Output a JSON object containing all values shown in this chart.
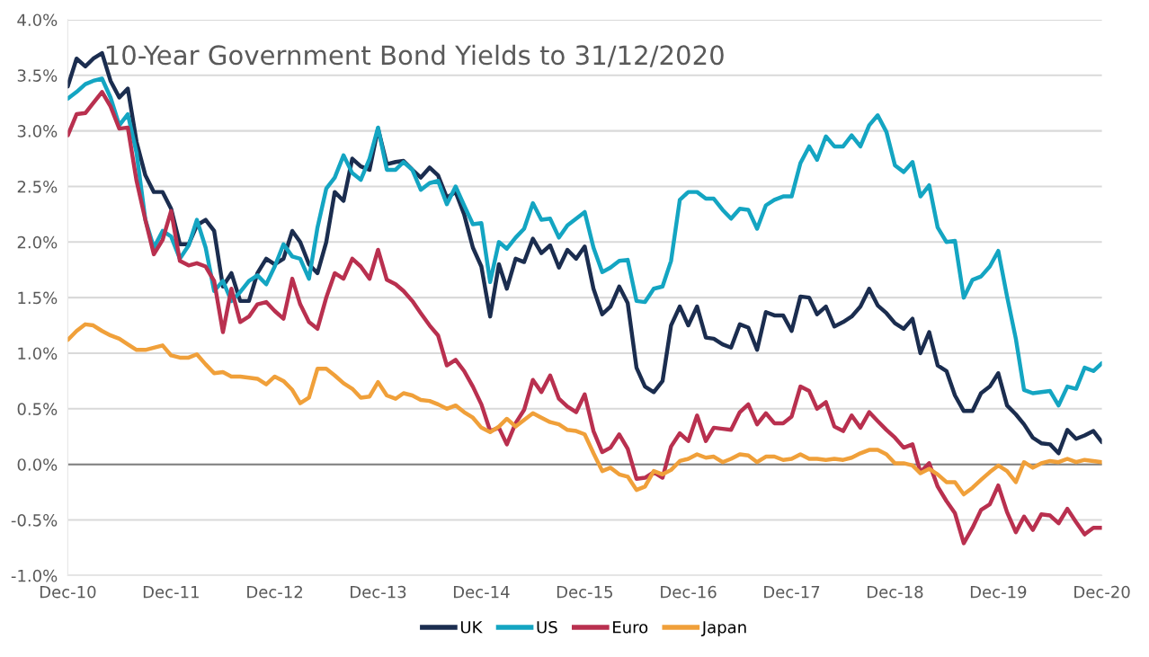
{
  "chart_data": {
    "type": "line",
    "title": "10-Year Government Bond Yields to 31/12/2020",
    "x": [
      "2010-12",
      "2011-01",
      "2011-02",
      "2011-03",
      "2011-04",
      "2011-05",
      "2011-06",
      "2011-07",
      "2011-08",
      "2011-09",
      "2011-10",
      "2011-11",
      "2011-12",
      "2012-01",
      "2012-02",
      "2012-03",
      "2012-04",
      "2012-05",
      "2012-06",
      "2012-07",
      "2012-08",
      "2012-09",
      "2012-10",
      "2012-11",
      "2012-12",
      "2013-01",
      "2013-02",
      "2013-03",
      "2013-04",
      "2013-05",
      "2013-06",
      "2013-07",
      "2013-08",
      "2013-09",
      "2013-10",
      "2013-11",
      "2013-12",
      "2014-01",
      "2014-02",
      "2014-03",
      "2014-04",
      "2014-05",
      "2014-06",
      "2014-07",
      "2014-08",
      "2014-09",
      "2014-10",
      "2014-11",
      "2014-12",
      "2015-01",
      "2015-02",
      "2015-03",
      "2015-04",
      "2015-05",
      "2015-06",
      "2015-07",
      "2015-08",
      "2015-09",
      "2015-10",
      "2015-11",
      "2015-12",
      "2016-01",
      "2016-02",
      "2016-03",
      "2016-04",
      "2016-05",
      "2016-06",
      "2016-07",
      "2016-08",
      "2016-09",
      "2016-10",
      "2016-11",
      "2016-12",
      "2017-01",
      "2017-02",
      "2017-03",
      "2017-04",
      "2017-05",
      "2017-06",
      "2017-07",
      "2017-08",
      "2017-09",
      "2017-10",
      "2017-11",
      "2017-12",
      "2018-01",
      "2018-02",
      "2018-03",
      "2018-04",
      "2018-05",
      "2018-06",
      "2018-07",
      "2018-08",
      "2018-09",
      "2018-10",
      "2018-11",
      "2018-12",
      "2019-01",
      "2019-02",
      "2019-03",
      "2019-04",
      "2019-05",
      "2019-06",
      "2019-07",
      "2019-08",
      "2019-09",
      "2019-10",
      "2019-11",
      "2019-12",
      "2020-01",
      "2020-02",
      "2020-03",
      "2020-04",
      "2020-05",
      "2020-06",
      "2020-07",
      "2020-08",
      "2020-09",
      "2020-10",
      "2020-11",
      "2020-12"
    ],
    "series": [
      {
        "name": "UK",
        "color": "#1b2d4f",
        "values": [
          3.4,
          3.65,
          3.58,
          3.65,
          3.7,
          3.45,
          3.3,
          3.38,
          2.9,
          2.6,
          2.45,
          2.45,
          2.3,
          1.98,
          1.98,
          2.15,
          2.2,
          2.1,
          1.6,
          1.72,
          1.47,
          1.47,
          1.72,
          1.85,
          1.8,
          1.85,
          2.1,
          2.0,
          1.8,
          1.72,
          2.0,
          2.45,
          2.37,
          2.75,
          2.68,
          2.65,
          3.02,
          2.7,
          2.72,
          2.73,
          2.65,
          2.58,
          2.67,
          2.6,
          2.4,
          2.45,
          2.25,
          1.95,
          1.78,
          1.33,
          1.8,
          1.58,
          1.85,
          1.82,
          2.03,
          1.9,
          1.97,
          1.77,
          1.93,
          1.85,
          1.96,
          1.58,
          1.35,
          1.42,
          1.6,
          1.45,
          0.87,
          0.7,
          0.65,
          0.75,
          1.25,
          1.42,
          1.25,
          1.42,
          1.14,
          1.13,
          1.08,
          1.05,
          1.26,
          1.23,
          1.03,
          1.37,
          1.34,
          1.34,
          1.2,
          1.51,
          1.5,
          1.35,
          1.42,
          1.24,
          1.28,
          1.33,
          1.42,
          1.58,
          1.43,
          1.36,
          1.27,
          1.22,
          1.31,
          1.0,
          1.19,
          0.89,
          0.84,
          0.62,
          0.48,
          0.48,
          0.64,
          0.7,
          0.82,
          0.53,
          0.45,
          0.36,
          0.24,
          0.19,
          0.18,
          0.1,
          0.31,
          0.23,
          0.26,
          0.3,
          0.2
        ]
      },
      {
        "name": "US",
        "color": "#14a5c2",
        "values": [
          3.29,
          3.35,
          3.42,
          3.45,
          3.47,
          3.3,
          3.05,
          3.15,
          2.8,
          2.2,
          1.95,
          2.1,
          2.05,
          1.85,
          1.97,
          2.2,
          1.95,
          1.56,
          1.65,
          1.47,
          1.55,
          1.65,
          1.7,
          1.62,
          1.78,
          1.98,
          1.87,
          1.85,
          1.67,
          2.13,
          2.48,
          2.58,
          2.78,
          2.62,
          2.56,
          2.75,
          3.03,
          2.65,
          2.65,
          2.72,
          2.65,
          2.47,
          2.53,
          2.55,
          2.34,
          2.5,
          2.33,
          2.16,
          2.17,
          1.64,
          2.0,
          1.94,
          2.04,
          2.12,
          2.35,
          2.2,
          2.21,
          2.04,
          2.15,
          2.21,
          2.27,
          1.95,
          1.73,
          1.77,
          1.83,
          1.84,
          1.47,
          1.46,
          1.58,
          1.6,
          1.83,
          2.38,
          2.45,
          2.45,
          2.39,
          2.39,
          2.29,
          2.21,
          2.3,
          2.29,
          2.12,
          2.33,
          2.38,
          2.41,
          2.41,
          2.71,
          2.86,
          2.74,
          2.95,
          2.86,
          2.86,
          2.96,
          2.86,
          3.05,
          3.14,
          2.99,
          2.69,
          2.63,
          2.72,
          2.41,
          2.51,
          2.13,
          2.0,
          2.01,
          1.5,
          1.66,
          1.69,
          1.78,
          1.92,
          1.51,
          1.13,
          0.67,
          0.64,
          0.65,
          0.66,
          0.53,
          0.7,
          0.68,
          0.87,
          0.84,
          0.91
        ]
      },
      {
        "name": "Euro",
        "color": "#b9304f",
        "values": [
          2.96,
          3.15,
          3.16,
          3.25,
          3.35,
          3.22,
          3.02,
          3.03,
          2.55,
          2.2,
          1.89,
          2.02,
          2.28,
          1.83,
          1.79,
          1.81,
          1.78,
          1.65,
          1.19,
          1.58,
          1.28,
          1.33,
          1.44,
          1.46,
          1.38,
          1.31,
          1.67,
          1.44,
          1.28,
          1.22,
          1.5,
          1.72,
          1.67,
          1.85,
          1.78,
          1.67,
          1.93,
          1.66,
          1.62,
          1.56,
          1.47,
          1.36,
          1.25,
          1.16,
          0.89,
          0.94,
          0.84,
          0.7,
          0.54,
          0.3,
          0.33,
          0.18,
          0.37,
          0.49,
          0.76,
          0.65,
          0.8,
          0.59,
          0.52,
          0.47,
          0.63,
          0.3,
          0.11,
          0.15,
          0.27,
          0.14,
          -0.13,
          -0.12,
          -0.07,
          -0.12,
          0.16,
          0.28,
          0.21,
          0.44,
          0.21,
          0.33,
          0.32,
          0.31,
          0.47,
          0.54,
          0.36,
          0.46,
          0.37,
          0.37,
          0.43,
          0.7,
          0.66,
          0.5,
          0.56,
          0.34,
          0.3,
          0.44,
          0.33,
          0.47,
          0.39,
          0.31,
          0.24,
          0.15,
          0.18,
          -0.07,
          0.01,
          -0.2,
          -0.33,
          -0.44,
          -0.71,
          -0.57,
          -0.41,
          -0.36,
          -0.19,
          -0.43,
          -0.61,
          -0.47,
          -0.59,
          -0.45,
          -0.46,
          -0.53,
          -0.4,
          -0.52,
          -0.63,
          -0.57,
          -0.57
        ]
      },
      {
        "name": "Japan",
        "color": "#f0a03a",
        "values": [
          1.12,
          1.2,
          1.26,
          1.25,
          1.2,
          1.16,
          1.13,
          1.08,
          1.03,
          1.03,
          1.05,
          1.07,
          0.98,
          0.96,
          0.96,
          0.99,
          0.9,
          0.82,
          0.83,
          0.79,
          0.79,
          0.78,
          0.77,
          0.72,
          0.79,
          0.75,
          0.67,
          0.55,
          0.6,
          0.86,
          0.86,
          0.8,
          0.73,
          0.68,
          0.6,
          0.61,
          0.74,
          0.62,
          0.59,
          0.64,
          0.62,
          0.58,
          0.57,
          0.54,
          0.5,
          0.53,
          0.47,
          0.42,
          0.33,
          0.29,
          0.34,
          0.41,
          0.34,
          0.4,
          0.46,
          0.42,
          0.38,
          0.36,
          0.31,
          0.3,
          0.27,
          0.1,
          -0.06,
          -0.03,
          -0.09,
          -0.11,
          -0.23,
          -0.2,
          -0.06,
          -0.09,
          -0.05,
          0.03,
          0.05,
          0.09,
          0.06,
          0.07,
          0.02,
          0.05,
          0.09,
          0.08,
          0.02,
          0.07,
          0.07,
          0.04,
          0.05,
          0.09,
          0.05,
          0.05,
          0.04,
          0.05,
          0.04,
          0.06,
          0.1,
          0.13,
          0.13,
          0.09,
          0.01,
          0.01,
          -0.01,
          -0.08,
          -0.04,
          -0.09,
          -0.16,
          -0.16,
          -0.27,
          -0.21,
          -0.14,
          -0.07,
          -0.01,
          -0.06,
          -0.16,
          0.02,
          -0.03,
          0.01,
          0.03,
          0.02,
          0.05,
          0.02,
          0.04,
          0.03,
          0.02
        ]
      }
    ],
    "xlim": [
      "2010-12",
      "2020-12"
    ],
    "xticks": [
      {
        "value": "2010-12",
        "label": "Dec-10"
      },
      {
        "value": "2011-12",
        "label": "Dec-11"
      },
      {
        "value": "2012-12",
        "label": "Dec-12"
      },
      {
        "value": "2013-12",
        "label": "Dec-13"
      },
      {
        "value": "2014-12",
        "label": "Dec-14"
      },
      {
        "value": "2015-12",
        "label": "Dec-15"
      },
      {
        "value": "2016-12",
        "label": "Dec-16"
      },
      {
        "value": "2017-12",
        "label": "Dec-17"
      },
      {
        "value": "2018-12",
        "label": "Dec-18"
      },
      {
        "value": "2019-12",
        "label": "Dec-19"
      },
      {
        "value": "2020-12",
        "label": "Dec-20"
      }
    ],
    "ylim": [
      -1.0,
      4.0
    ],
    "yticks": [
      {
        "value": -1.0,
        "label": "-1.0%"
      },
      {
        "value": -0.5,
        "label": "-0.5%"
      },
      {
        "value": 0.0,
        "label": "0.0%"
      },
      {
        "value": 0.5,
        "label": "0.5%"
      },
      {
        "value": 1.0,
        "label": "1.0%"
      },
      {
        "value": 1.5,
        "label": "1.5%"
      },
      {
        "value": 2.0,
        "label": "2.0%"
      },
      {
        "value": 2.5,
        "label": "2.5%"
      },
      {
        "value": 3.0,
        "label": "3.0%"
      },
      {
        "value": 3.5,
        "label": "3.5%"
      },
      {
        "value": 4.0,
        "label": "4.0%"
      }
    ],
    "ref_lines": [
      {
        "axis": "y",
        "value": 0,
        "color": "#808080",
        "line_style": "solid"
      }
    ],
    "grid": "y",
    "legend": "bottom",
    "marker": "none",
    "line_style": "solid"
  }
}
